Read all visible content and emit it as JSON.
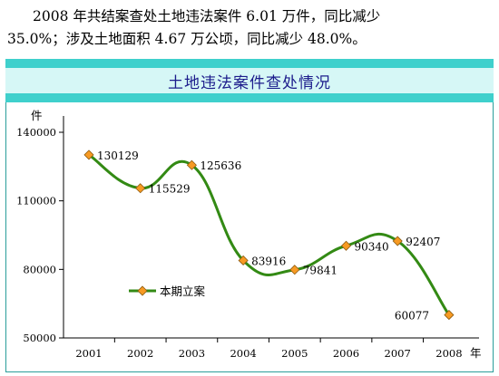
{
  "intro": {
    "line1": "2008 年共结案查处土地违法案件 6.01 万件，同比减少",
    "line2": "35.0%；涉及土地面积 4.67 万公顷，同比减少 48.0%。"
  },
  "colors": {
    "line": "#338a14",
    "marker_fill": "#f79a23",
    "marker_stroke": "#8a5a10",
    "header_band": "#3fd0cc",
    "title": "#1c1c8c"
  },
  "chart_data": {
    "type": "line",
    "title": "土地违法案件查处情况",
    "ylabel": "件",
    "xlabel": "年",
    "categories": [
      "2001",
      "2002",
      "2003",
      "2004",
      "2005",
      "2006",
      "2007",
      "2008"
    ],
    "y_ticks": [
      50000,
      80000,
      110000,
      140000
    ],
    "ylim": [
      50000,
      140000
    ],
    "grid": false,
    "legend": "center-left",
    "series": [
      {
        "name": "本期立案",
        "values": [
          130129,
          115529,
          125636,
          83916,
          79841,
          90340,
          92407,
          60077
        ],
        "labels": [
          "130129",
          "115529",
          "125636",
          "83916",
          "79841",
          "90340",
          "92407",
          "60077"
        ]
      }
    ]
  }
}
